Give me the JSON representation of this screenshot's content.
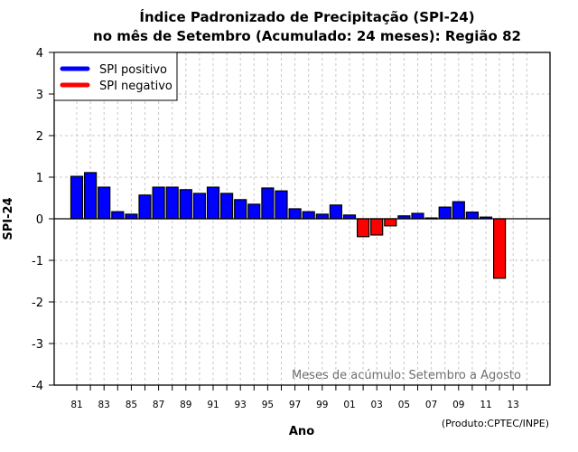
{
  "chart_data": {
    "type": "bar",
    "title": [
      "Índice Padronizado de Precipitação (SPI-24)",
      "no mês de Setembro (Acumulado: 24 meses): Região 82"
    ],
    "xlabel": "Ano",
    "ylabel": "SPI-24",
    "ylim": [
      -4,
      4
    ],
    "yticks": [
      -4,
      -3,
      -2,
      -1,
      0,
      1,
      2,
      3,
      4
    ],
    "xrange": [
      1981,
      2014
    ],
    "xtick_labels": [
      "81",
      "83",
      "85",
      "87",
      "89",
      "91",
      "93",
      "95",
      "97",
      "99",
      "01",
      "03",
      "05",
      "07",
      "09",
      "11",
      "13"
    ],
    "grid": true,
    "legend_position": "top-left",
    "legend": [
      {
        "label": "SPI positivo",
        "color": "#0000ff"
      },
      {
        "label": "SPI negativo",
        "color": "#ff0000"
      }
    ],
    "colors": {
      "positive": "#0000ff",
      "negative": "#ff0000"
    },
    "annotation": "Meses de acúmulo: Setembro a Agosto",
    "credit": "(Produto:CPTEC/INPE)",
    "categories": [
      "1981",
      "1982",
      "1983",
      "1984",
      "1985",
      "1986",
      "1987",
      "1988",
      "1989",
      "1990",
      "1991",
      "1992",
      "1993",
      "1994",
      "1995",
      "1996",
      "1997",
      "1998",
      "1999",
      "2000",
      "2001",
      "2002",
      "2003",
      "2004",
      "2005",
      "2006",
      "2007",
      "2008",
      "2009",
      "2010",
      "2011",
      "2012"
    ],
    "values": [
      1.02,
      1.11,
      0.76,
      0.17,
      0.11,
      0.57,
      0.76,
      0.76,
      0.7,
      0.61,
      0.76,
      0.61,
      0.46,
      0.35,
      0.74,
      0.67,
      0.24,
      0.17,
      0.11,
      0.33,
      0.09,
      -0.43,
      -0.39,
      -0.17,
      0.07,
      0.13,
      0.02,
      0.28,
      0.41,
      0.16,
      0.04,
      -1.43
    ]
  }
}
